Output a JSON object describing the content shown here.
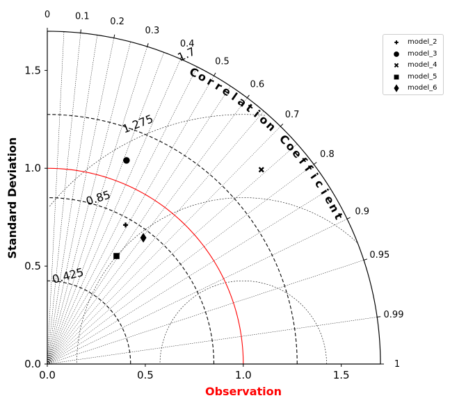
{
  "chart_data": {
    "type": "taylor",
    "title": "",
    "xlabel": "Observation",
    "ylabel": "Standard Deviation",
    "arc_label": "Correlation Coefficient",
    "std_max": 1.7,
    "std_ticks": [
      0.0,
      0.5,
      1.0,
      1.5
    ],
    "correlation_ticks": [
      0,
      0.1,
      0.2,
      0.3,
      0.4,
      0.5,
      0.6,
      0.7,
      0.8,
      0.9,
      0.95,
      0.99,
      1
    ],
    "std_contours": [
      0.425,
      0.85,
      1.275,
      1.7
    ],
    "std_contour_labels": [
      "0.425",
      "0.85",
      "1.275",
      "1.7"
    ],
    "reference_std": 1.0,
    "rms_contours": [
      0.425,
      0.85,
      1.275
    ],
    "colors": {
      "reference": "#ff0000",
      "xlabel": "#ff0000",
      "marker": "#000000",
      "grid": "#000000"
    },
    "series": [
      {
        "name": "model_2",
        "marker": "plus",
        "std": 0.815,
        "corr": 0.49
      },
      {
        "name": "model_3",
        "marker": "circle",
        "std": 1.116,
        "corr": 0.362
      },
      {
        "name": "model_4",
        "marker": "x",
        "std": 1.476,
        "corr": 0.74
      },
      {
        "name": "model_5",
        "marker": "square",
        "std": 0.655,
        "corr": 0.539
      },
      {
        "name": "model_6",
        "marker": "diamond",
        "std": 0.81,
        "corr": 0.605
      }
    ],
    "legend_position": "top-right"
  }
}
